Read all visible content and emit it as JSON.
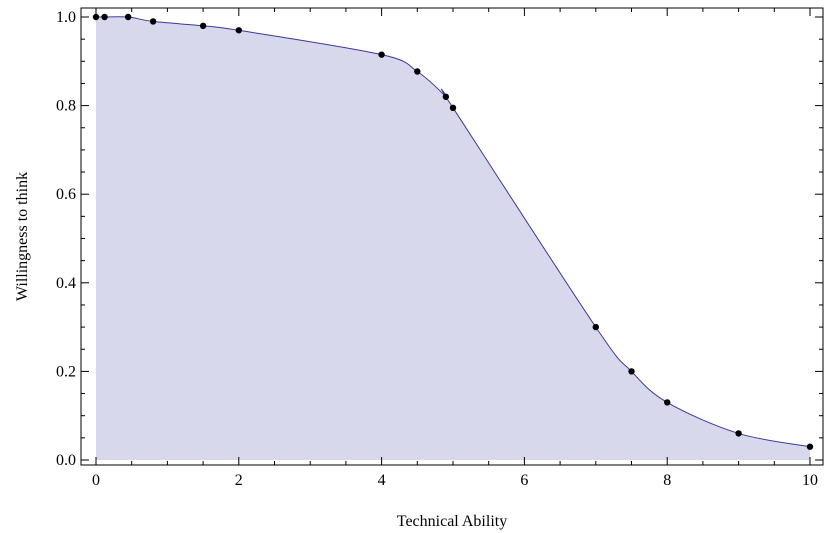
{
  "chart_data": {
    "type": "area",
    "title": "",
    "xlabel": "Technical Ability",
    "ylabel": "Willingness to think",
    "xlim": [
      -0.2,
      10.2
    ],
    "ylim": [
      0,
      1.0
    ],
    "x_ticks": [
      0,
      2,
      4,
      6,
      8,
      10
    ],
    "x_tick_labels": [
      "0",
      "2",
      "4",
      "6",
      "8",
      "10"
    ],
    "y_ticks": [
      0.0,
      0.2,
      0.4,
      0.6,
      0.8,
      1.0
    ],
    "y_tick_labels": [
      "0.0",
      "0.2",
      "0.4",
      "0.6",
      "0.8",
      "1.0"
    ],
    "grid": false,
    "colors": {
      "line": "#3a3a9a",
      "fill": "#d8d8ec",
      "marker": "#000000",
      "frame": "#000000"
    },
    "points": [
      {
        "x": 0.0,
        "y": 1.0
      },
      {
        "x": 0.12,
        "y": 1.0
      },
      {
        "x": 0.45,
        "y": 1.0
      },
      {
        "x": 0.8,
        "y": 0.99
      },
      {
        "x": 1.5,
        "y": 0.98
      },
      {
        "x": 2.0,
        "y": 0.97
      },
      {
        "x": 4.0,
        "y": 0.915
      },
      {
        "x": 4.5,
        "y": 0.877
      },
      {
        "x": 4.9,
        "y": 0.82
      },
      {
        "x": 5.0,
        "y": 0.795
      },
      {
        "x": 7.0,
        "y": 0.3
      },
      {
        "x": 7.5,
        "y": 0.2
      },
      {
        "x": 8.0,
        "y": 0.13
      },
      {
        "x": 9.0,
        "y": 0.06
      },
      {
        "x": 10.0,
        "y": 0.03
      }
    ]
  }
}
